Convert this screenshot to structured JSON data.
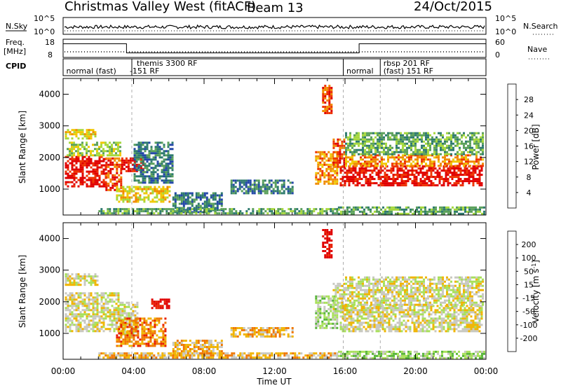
{
  "header": {
    "title": "Christmas Valley West (fitACF)",
    "beam": "Beam 13",
    "date": "24/Oct/2015"
  },
  "strip_nsky": {
    "label": "N.Sky",
    "yticks": [
      "10^5",
      "10^0"
    ],
    "right_label": "N.Search",
    "right_ticks": [
      "10^5",
      "10^0"
    ]
  },
  "strip_freq": {
    "label_line1": "Freq.",
    "label_line2": "[MHz]",
    "yticks": [
      "18",
      "8"
    ],
    "right_label": "Nave",
    "right_ticks": [
      "60",
      "0"
    ],
    "segments": [
      {
        "t0": 0.0,
        "t1": 3.6,
        "freq_mhz": 15.5
      },
      {
        "t0": 3.6,
        "t1": 16.8,
        "freq_mhz": 10.5
      },
      {
        "t0": 16.8,
        "t1": 24.0,
        "freq_mhz": 15.5
      }
    ]
  },
  "cpid": {
    "label": "CPID",
    "boundaries_hours": [
      3.9,
      15.9,
      18.0
    ],
    "entries": [
      {
        "text": "normal (fast)",
        "t": 0.1,
        "row": 1
      },
      {
        "text": "themis 3300 RF",
        "t": 4.1,
        "row": 0
      },
      {
        "text": "-151 RF",
        "t": 3.7,
        "row": 1
      },
      {
        "text": "normal",
        "t": 16.0,
        "row": 1
      },
      {
        "text": "rbsp 201 RF",
        "t": 18.1,
        "row": 0
      },
      {
        "text": "(fast) 151 RF",
        "t": 18.1,
        "row": 1
      }
    ]
  },
  "axes": {
    "x_label": "Time UT",
    "x_ticks": [
      "00:00",
      "04:00",
      "08:00",
      "12:00",
      "16:00",
      "20:00",
      "00:00"
    ],
    "y_label": "Slant Range [km]",
    "y_ticks": [
      "1000",
      "2000",
      "3000",
      "4000"
    ]
  },
  "chart_data": [
    {
      "type": "heatmap",
      "name": "power",
      "x_unit": "hours UT",
      "xlim": [
        0,
        24
      ],
      "y_unit": "km",
      "ylim": [
        180,
        4500
      ],
      "colorbar": {
        "label": "Power [dB]",
        "ticks": [
          "4",
          "8",
          "12",
          "16",
          "20",
          "24",
          "28"
        ],
        "colors": [
          "#0a1ee6",
          "#2347a8",
          "#2e7a6e",
          "#5aa05a",
          "#a6d83c",
          "#f0c800",
          "#f08a00",
          "#ee3300",
          "#e00000"
        ]
      },
      "regions": [
        {
          "t0": 0.1,
          "t1": 2.4,
          "r0": 1100,
          "r1": 2050,
          "level": 8
        },
        {
          "t0": 2.4,
          "t1": 3.3,
          "r0": 1000,
          "r1": 2000,
          "level": 7
        },
        {
          "t0": 0.2,
          "t1": 3.2,
          "r0": 2050,
          "r1": 2500,
          "level": 4
        },
        {
          "t0": 0.1,
          "t1": 1.8,
          "r0": 2600,
          "r1": 2900,
          "level": 5
        },
        {
          "t0": 3.3,
          "t1": 4.5,
          "r0": 1600,
          "r1": 2000,
          "level": 8
        },
        {
          "t0": 3.0,
          "t1": 6.0,
          "r0": 600,
          "r1": 1100,
          "level": 5
        },
        {
          "t0": 4.0,
          "t1": 6.2,
          "r0": 1200,
          "r1": 2500,
          "level": 2
        },
        {
          "t0": 6.2,
          "t1": 9.0,
          "r0": 300,
          "r1": 900,
          "level": 2
        },
        {
          "t0": 9.5,
          "t1": 13.0,
          "r0": 900,
          "r1": 1300,
          "level": 2
        },
        {
          "t0": 2.0,
          "t1": 15.5,
          "r0": 220,
          "r1": 400,
          "level": 3
        },
        {
          "t0": 14.3,
          "t1": 15.6,
          "r0": 1200,
          "r1": 2200,
          "level": 6
        },
        {
          "t0": 14.7,
          "t1": 15.2,
          "r0": 3400,
          "r1": 4300,
          "level": 7
        },
        {
          "t0": 15.3,
          "t1": 15.9,
          "r0": 1700,
          "r1": 2600,
          "level": 7
        },
        {
          "t0": 15.7,
          "t1": 23.8,
          "r0": 1100,
          "r1": 1750,
          "level": 8
        },
        {
          "t0": 16.0,
          "t1": 23.8,
          "r0": 1750,
          "r1": 2100,
          "level": 6
        },
        {
          "t0": 16.0,
          "t1": 23.8,
          "r0": 2100,
          "r1": 2800,
          "level": 3
        },
        {
          "t0": 15.6,
          "t1": 23.9,
          "r0": 220,
          "r1": 450,
          "level": 3
        }
      ]
    },
    {
      "type": "heatmap",
      "name": "velocity",
      "x_unit": "hours UT",
      "xlim": [
        0,
        24
      ],
      "y_unit": "km",
      "ylim": [
        180,
        4500
      ],
      "colorbar": {
        "label": "Velocity [m s^-1]",
        "ticks": [
          "200",
          "100",
          "50",
          "15",
          "-15",
          "-50",
          "-100",
          "-200"
        ],
        "colors": [
          "#1a2bd8",
          "#2d4f9a",
          "#2f7a55",
          "#58b53a",
          "#a8e05a",
          "#c8c8c0",
          "#f0b400",
          "#f07800",
          "#e82000",
          "#e00000"
        ]
      },
      "regions": [
        {
          "t0": 0.1,
          "t1": 3.2,
          "r0": 1100,
          "r1": 2300,
          "level": 5
        },
        {
          "t0": 3.2,
          "t1": 4.2,
          "r0": 950,
          "r1": 2000,
          "level": 5
        },
        {
          "t0": 0.1,
          "t1": 2.0,
          "r0": 2550,
          "r1": 2900,
          "level": 5
        },
        {
          "t0": 3.0,
          "t1": 5.8,
          "r0": 600,
          "r1": 1500,
          "level": 7
        },
        {
          "t0": 5.0,
          "t1": 6.0,
          "r0": 1800,
          "r1": 2100,
          "level": 9
        },
        {
          "t0": 6.2,
          "t1": 9.0,
          "r0": 300,
          "r1": 800,
          "level": 6
        },
        {
          "t0": 9.5,
          "t1": 13.0,
          "r0": 900,
          "r1": 1200,
          "level": 6
        },
        {
          "t0": 2.0,
          "t1": 15.5,
          "r0": 220,
          "r1": 400,
          "level": 6
        },
        {
          "t0": 14.3,
          "t1": 15.6,
          "r0": 1200,
          "r1": 2200,
          "level": 4
        },
        {
          "t0": 14.7,
          "t1": 15.2,
          "r0": 3400,
          "r1": 4300,
          "level": 9
        },
        {
          "t0": 15.3,
          "t1": 15.9,
          "r0": 1700,
          "r1": 2600,
          "level": 5
        },
        {
          "t0": 15.7,
          "t1": 23.8,
          "r0": 1100,
          "r1": 1900,
          "level": 5
        },
        {
          "t0": 16.0,
          "t1": 23.8,
          "r0": 1900,
          "r1": 2800,
          "level": 5
        },
        {
          "t0": 15.6,
          "t1": 23.9,
          "r0": 220,
          "r1": 450,
          "level": 4
        }
      ]
    }
  ]
}
